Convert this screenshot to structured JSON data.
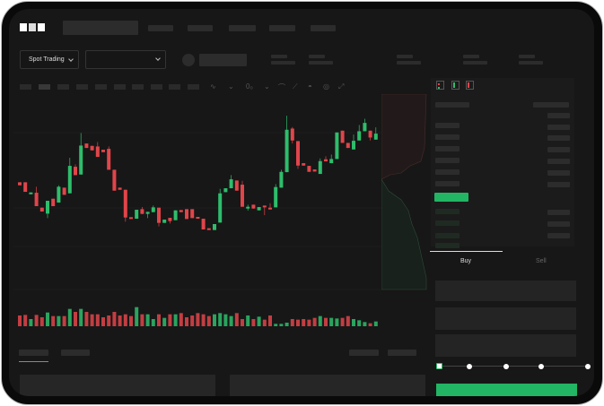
{
  "brand": {
    "logo": "OKX"
  },
  "header": {
    "market_selector": "Spot Trading"
  },
  "order_form": {
    "tabs": [
      {
        "label": "Buy",
        "active": true
      },
      {
        "label": "Sell",
        "active": false
      }
    ],
    "slider_level_percent": 0,
    "submit_color": "#22b563"
  },
  "colors": {
    "up": "#2ebd6b",
    "down": "#e0454a",
    "background": "#171717"
  },
  "icons": [
    "chevron-down-icon",
    "indicator-icon",
    "line-icon",
    "ruler-icon",
    "camera-icon",
    "settings-icon",
    "fullscreen-icon",
    "orderbook-both-icon",
    "orderbook-buy-icon",
    "orderbook-sell-icon"
  ],
  "chart_data": {
    "type": "candlestick",
    "candles": [
      [
        "d",
        170,
        160,
        170,
        160
      ],
      [
        "d",
        170,
        138,
        170,
        138
      ],
      [
        "u",
        130,
        136,
        136,
        130
      ],
      [
        "d",
        135,
        90,
        155,
        90
      ],
      [
        "d",
        85,
        72,
        85,
        72
      ],
      [
        "u",
        65,
        108,
        108,
        50
      ],
      [
        "d",
        115,
        90,
        115,
        90
      ],
      [
        "u",
        102,
        155,
        160,
        102
      ],
      [
        "d",
        152,
        128,
        152,
        128
      ],
      [
        "u",
        133,
        225,
        252,
        133
      ],
      [
        "d",
        222,
        194,
        230,
        194
      ],
      [
        "u",
        196,
        293,
        335,
        196
      ],
      [
        "d",
        300,
        285,
        300,
        285
      ],
      [
        "d",
        292,
        277,
        292,
        277
      ],
      [
        "d",
        290,
        255,
        305,
        255
      ],
      [
        "d",
        279,
        271,
        279,
        271
      ],
      [
        "d",
        282,
        212,
        290,
        212
      ],
      [
        "d",
        212,
        142,
        212,
        142
      ],
      [
        "d",
        152,
        145,
        152,
        145
      ],
      [
        "d",
        145,
        52,
        145,
        38
      ],
      [
        "d",
        53,
        48,
        53,
        48
      ],
      [
        "u",
        48,
        78,
        78,
        48
      ],
      [
        "d",
        80,
        64,
        87,
        64
      ],
      [
        "u",
        64,
        71,
        71,
        50
      ],
      [
        "u",
        70,
        86,
        92,
        70
      ],
      [
        "d",
        85,
        34,
        85,
        22
      ],
      [
        "u",
        34,
        45,
        45,
        34
      ],
      [
        "d",
        51,
        40,
        51,
        32
      ],
      [
        "u",
        43,
        76,
        76,
        43
      ],
      [
        "d",
        77,
        70,
        77,
        70
      ],
      [
        "d",
        80,
        47,
        80,
        47
      ],
      [
        "d",
        80,
        50,
        80,
        50
      ],
      [
        "d",
        54,
        50,
        54,
        50
      ],
      [
        "d",
        48,
        12,
        48,
        12
      ],
      [
        "d",
        16,
        10,
        16,
        10
      ],
      [
        "u",
        10,
        30,
        30,
        10
      ],
      [
        "u",
        35,
        133,
        148,
        35
      ],
      [
        "u",
        137,
        150,
        150,
        137
      ],
      [
        "u",
        150,
        180,
        194,
        150
      ],
      [
        "d",
        176,
        142,
        176,
        142
      ],
      [
        "d",
        162,
        88,
        175,
        88
      ],
      [
        "u",
        82,
        88,
        95,
        75
      ],
      [
        "d",
        95,
        82,
        95,
        82
      ],
      [
        "u",
        76,
        87,
        87,
        76
      ],
      [
        "d",
        92,
        88,
        92,
        60
      ],
      [
        "d",
        85,
        79,
        100,
        79
      ],
      [
        "u",
        86,
        154,
        164,
        86
      ],
      [
        "u",
        152,
        205,
        212,
        152
      ],
      [
        "u",
        204,
        346,
        393,
        204
      ],
      [
        "d",
        350,
        310,
        355,
        300
      ],
      [
        "d",
        308,
        226,
        308,
        215
      ],
      [
        "d",
        234,
        226,
        234,
        226
      ],
      [
        "d",
        225,
        205,
        225,
        205
      ],
      [
        "d",
        213,
        206,
        213,
        206
      ],
      [
        "u",
        198,
        241,
        250,
        198
      ],
      [
        "d",
        247,
        240,
        257,
        240
      ],
      [
        "u",
        234,
        248,
        263,
        234
      ],
      [
        "u",
        248,
        337,
        337,
        248
      ],
      [
        "d",
        343,
        302,
        343,
        302
      ],
      [
        "d",
        302,
        285,
        302,
        285
      ],
      [
        "u",
        280,
        309,
        330,
        280
      ],
      [
        "u",
        310,
        341,
        362,
        310
      ],
      [
        "u",
        341,
        369,
        383,
        341
      ],
      [
        "d",
        343,
        320,
        343,
        310
      ],
      [
        "u",
        313,
        333,
        354,
        313
      ]
    ],
    "volumes": [
      36,
      38,
      24,
      38,
      30,
      46,
      34,
      34,
      34,
      58,
      48,
      58,
      48,
      40,
      40,
      30,
      36,
      48,
      36,
      40,
      34,
      64,
      40,
      40,
      24,
      40,
      28,
      40,
      40,
      44,
      30,
      36,
      44,
      40,
      34,
      40,
      44,
      40,
      34,
      44,
      24,
      36,
      24,
      32,
      22,
      36,
      8,
      8,
      12,
      24,
      22,
      24,
      22,
      28,
      34,
      28,
      28,
      26,
      28,
      34,
      24,
      20,
      14,
      10,
      16
    ]
  }
}
